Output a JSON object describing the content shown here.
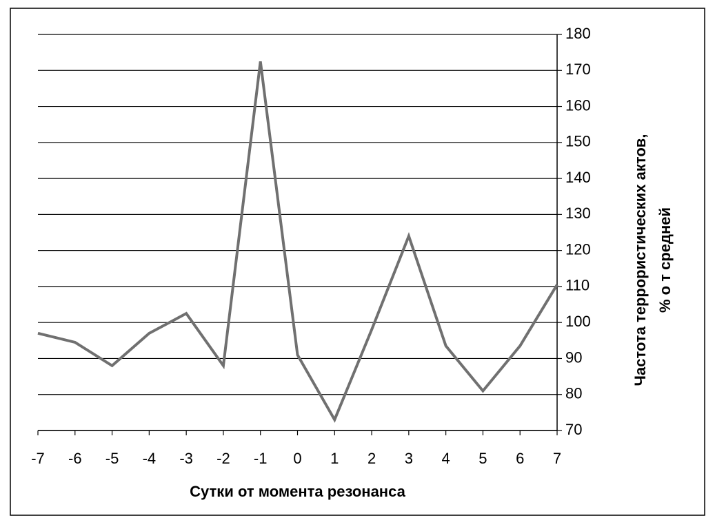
{
  "chart_data": {
    "type": "line",
    "x_label": "Сутки от момента резонанса",
    "y_label": [
      "Частота террористических актов,",
      "% о т средней"
    ],
    "x": [
      -7,
      -6,
      -5,
      -4,
      -3,
      -2,
      -1,
      0,
      1,
      2,
      3,
      4,
      5,
      6,
      7
    ],
    "series": [
      {
        "color": "#707070",
        "values": [
          97,
          94.5,
          88,
          97,
          102.5,
          88,
          172.5,
          91,
          73,
          98,
          124,
          93.5,
          81,
          93.5,
          110.5
        ]
      }
    ],
    "xlim": [
      -7,
      7
    ],
    "xticks": [
      -7,
      -6,
      -5,
      -4,
      -3,
      -2,
      -1,
      0,
      1,
      2,
      3,
      4,
      5,
      6,
      7
    ],
    "ylim": [
      70,
      180
    ],
    "yticks": [
      70,
      80,
      90,
      100,
      110,
      120,
      130,
      140,
      150,
      160,
      170,
      180
    ],
    "grid": true,
    "y_axis_side": "right"
  }
}
